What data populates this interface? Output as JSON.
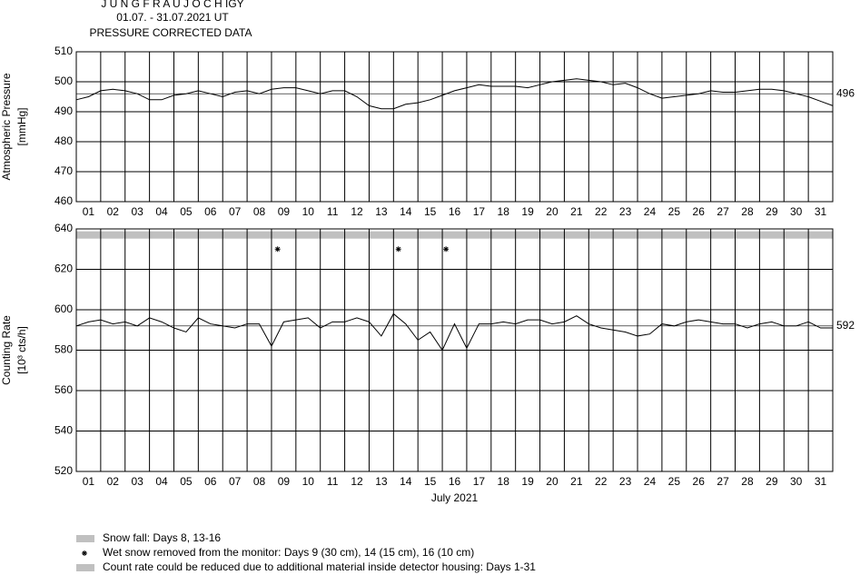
{
  "header": {
    "title": "J U N G F R A U J O C H  IGY",
    "subtitle": "01.07. - 31.07.2021  UT",
    "note": "PRESSURE CORRECTED DATA"
  },
  "chart_data": [
    {
      "type": "line",
      "ylabel": [
        "Atmospheric Pressure",
        "[mmHg]"
      ],
      "categories": [
        "01",
        "02",
        "03",
        "04",
        "05",
        "06",
        "07",
        "08",
        "09",
        "10",
        "11",
        "12",
        "13",
        "14",
        "15",
        "16",
        "17",
        "18",
        "19",
        "20",
        "21",
        "22",
        "23",
        "24",
        "25",
        "26",
        "27",
        "28",
        "29",
        "30",
        "31"
      ],
      "xlim": [
        1,
        32
      ],
      "xticks": [
        1,
        2,
        3,
        4,
        5,
        6,
        7,
        8,
        9,
        10,
        11,
        12,
        13,
        14,
        15,
        16,
        17,
        18,
        19,
        20,
        21,
        22,
        23,
        24,
        25,
        26,
        27,
        28,
        29,
        30,
        31,
        32
      ],
      "ylim": [
        460,
        510
      ],
      "yticks": [
        460,
        470,
        480,
        490,
        500,
        510
      ],
      "grid": true,
      "reference": 496,
      "series": [
        {
          "color": "#000000",
          "x": [
            1,
            1.5,
            2,
            2.5,
            3,
            3.5,
            4,
            4.5,
            5,
            5.5,
            6,
            6.5,
            7,
            7.5,
            8,
            8.5,
            9,
            9.5,
            10,
            10.5,
            11,
            11.5,
            12,
            12.5,
            13,
            13.5,
            14,
            14.5,
            15,
            15.5,
            16,
            16.5,
            17,
            17.5,
            18,
            18.5,
            19,
            19.5,
            20,
            20.5,
            21,
            21.5,
            22,
            22.5,
            23,
            23.5,
            24,
            24.5,
            25,
            25.5,
            26,
            26.5,
            27,
            27.5,
            28,
            28.5,
            29,
            29.5,
            30,
            30.5,
            31,
            31.5,
            32
          ],
          "values": [
            494,
            495,
            497,
            497.5,
            497,
            496,
            494,
            494,
            495.5,
            496,
            497,
            496,
            495,
            496.5,
            497,
            496,
            497.5,
            498,
            498,
            497,
            496,
            497,
            497,
            495,
            492,
            491,
            491,
            492.5,
            493,
            494,
            495.5,
            497,
            498,
            499,
            498.5,
            498.5,
            498.5,
            498,
            499,
            500,
            500.5,
            501,
            500.5,
            500,
            499,
            499.5,
            498,
            496,
            494.5,
            495,
            495.5,
            496,
            497,
            496.5,
            496.5,
            497,
            497.5,
            497.5,
            497,
            496,
            495,
            493.5,
            492
          ]
        }
      ]
    },
    {
      "type": "line",
      "ylabel": [
        "Counting Rate",
        "[10³ cts/h]"
      ],
      "xlabel": "July 2021",
      "categories": [
        "01",
        "02",
        "03",
        "04",
        "05",
        "06",
        "07",
        "08",
        "09",
        "10",
        "11",
        "12",
        "13",
        "14",
        "15",
        "16",
        "17",
        "18",
        "19",
        "20",
        "21",
        "22",
        "23",
        "24",
        "25",
        "26",
        "27",
        "28",
        "29",
        "30",
        "31"
      ],
      "xlim": [
        1,
        32
      ],
      "xticks": [
        1,
        2,
        3,
        4,
        5,
        6,
        7,
        8,
        9,
        10,
        11,
        12,
        13,
        14,
        15,
        16,
        17,
        18,
        19,
        20,
        21,
        22,
        23,
        24,
        25,
        26,
        27,
        28,
        29,
        30,
        31,
        32
      ],
      "ylim": [
        520,
        640
      ],
      "yticks": [
        520,
        540,
        560,
        580,
        600,
        620,
        640
      ],
      "grid": true,
      "reference": 592,
      "band": {
        "start": 1,
        "end": 32,
        "value": 637,
        "color": "#c0c0c0"
      },
      "markers": {
        "x": [
          9.25,
          14.2,
          16.15
        ],
        "values": [
          630,
          630,
          630
        ]
      },
      "series": [
        {
          "color": "#000000",
          "x": [
            1,
            1.5,
            2,
            2.5,
            3,
            3.5,
            4,
            4.5,
            5,
            5.5,
            6,
            6.5,
            7,
            7.5,
            8,
            8.5,
            9,
            9.5,
            10,
            10.5,
            11,
            11.5,
            12,
            12.5,
            13,
            13.5,
            14,
            14.5,
            15,
            15.5,
            16,
            16.5,
            17,
            17.5,
            18,
            18.5,
            19,
            19.5,
            20,
            20.5,
            21,
            21.5,
            22,
            22.5,
            23,
            23.5,
            24,
            24.5,
            25,
            25.5,
            26,
            26.5,
            27,
            27.5,
            28,
            28.5,
            29,
            29.5,
            30,
            30.5,
            31,
            31.5,
            32
          ],
          "values": [
            592,
            594,
            595,
            593,
            594,
            592,
            596,
            594,
            591,
            589,
            596,
            593,
            592,
            591,
            593,
            593,
            582,
            594,
            595,
            596,
            591,
            594,
            594,
            596,
            594,
            587,
            598,
            593,
            585,
            589,
            580,
            593,
            581,
            593,
            593,
            594,
            593,
            595,
            595,
            593,
            594,
            597,
            593,
            591,
            590,
            589,
            587,
            588,
            593,
            592,
            594,
            595,
            594,
            593,
            593,
            591,
            593,
            594,
            592,
            592,
            594,
            591,
            591
          ]
        }
      ]
    }
  ],
  "legend": [
    {
      "label": "Snow fall: Days 8, 13-16",
      "color": "#c0c0c0"
    },
    {
      "label": "Wet snow removed from the monitor: Days 9 (30 cm), 14 (15 cm), 16 (10 cm)"
    },
    {
      "label": "Count rate could be reduced due to additional material inside detector housing: Days 1-31",
      "color": "#c0c0c0"
    }
  ]
}
